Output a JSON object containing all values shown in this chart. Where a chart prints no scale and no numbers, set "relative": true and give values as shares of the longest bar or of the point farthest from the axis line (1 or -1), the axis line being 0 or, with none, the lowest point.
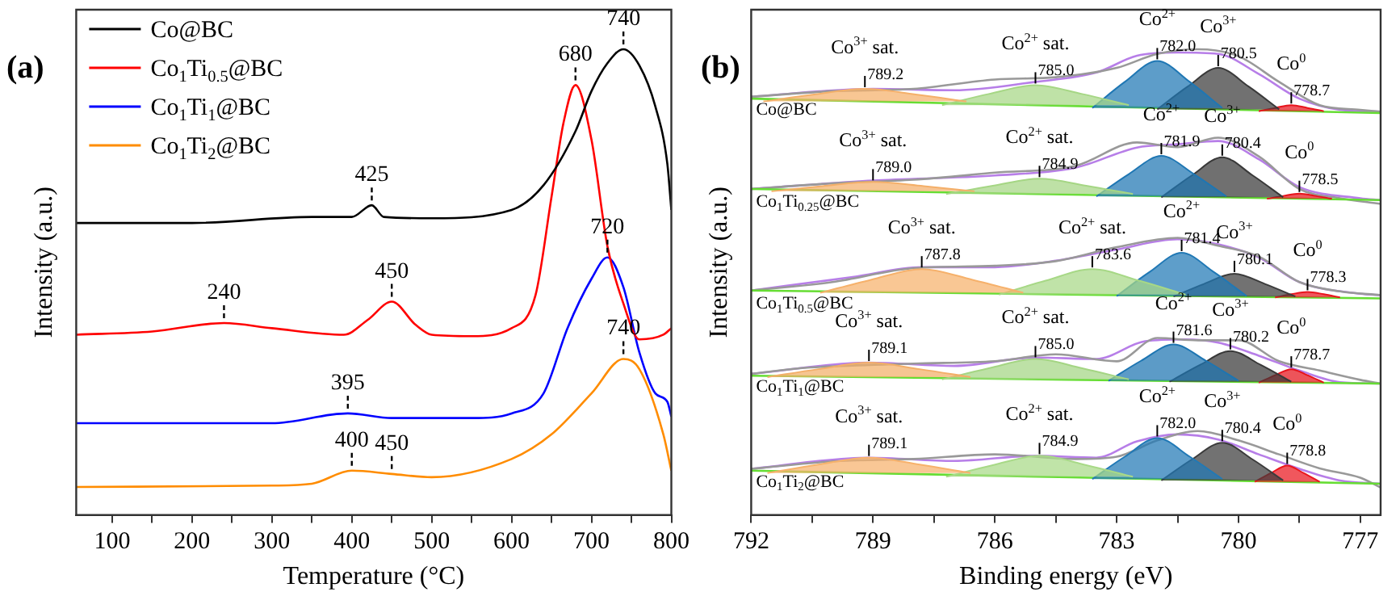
{
  "chart_data": [
    {
      "type": "line",
      "title": "(a)",
      "xlabel": "Temperature (°C)",
      "ylabel": "Intensity (a.u.)",
      "relative": true,
      "legend": "top left",
      "xlim": [
        55,
        800
      ],
      "xticks": [
        100,
        {
          "value": 150,
          "label": null
        },
        200,
        {
          "value": 250,
          "label": null
        },
        300,
        {
          "value": 350,
          "label": null
        },
        400,
        {
          "value": 450,
          "label": null
        },
        500,
        {
          "value": 550,
          "label": null
        },
        600,
        {
          "value": 650,
          "label": null
        },
        700,
        {
          "value": 750,
          "label": null
        },
        800
      ],
      "series": [
        {
          "name": "Co@BC",
          "color": "#000000",
          "x": [
            55,
            200,
            350,
            400,
            425,
            440,
            500,
            600,
            640,
            680,
            700,
            720,
            740,
            760,
            780,
            795,
            800
          ],
          "values": [
            0.627,
            0.627,
            0.64,
            0.64,
            0.665,
            0.64,
            0.637,
            0.655,
            0.708,
            0.824,
            0.91,
            0.97,
            1.0,
            0.965,
            0.877,
            0.754,
            0.655
          ]
        },
        {
          "name": "Co$_{1}$Ti$_{0.5}$@BC",
          "color": "#ff0000",
          "x": [
            55,
            150,
            240,
            300,
            390,
            420,
            450,
            480,
            500,
            550,
            600,
            630,
            650,
            665,
            680,
            700,
            720,
            740,
            760,
            790,
            800
          ],
          "values": [
            0.387,
            0.394,
            0.412,
            0.401,
            0.387,
            0.419,
            0.458,
            0.408,
            0.387,
            0.384,
            0.401,
            0.472,
            0.683,
            0.842,
            0.923,
            0.806,
            0.577,
            0.454,
            0.377,
            0.387,
            0.401
          ]
        },
        {
          "name": "Co$_{1}$Ti$_{1}$@BC",
          "color": "#0000ff",
          "x": [
            55,
            300,
            395,
            450,
            550,
            600,
            640,
            670,
            700,
            720,
            740,
            760,
            780,
            795,
            800
          ],
          "values": [
            0.197,
            0.197,
            0.218,
            0.208,
            0.208,
            0.218,
            0.261,
            0.401,
            0.507,
            0.553,
            0.489,
            0.349,
            0.261,
            0.243,
            0.211
          ]
        },
        {
          "name": "Co$_{1}$Ti$_{2}$@BC",
          "color": "#ff8c00",
          "x": [
            55,
            300,
            350,
            400,
            450,
            500,
            600,
            650,
            700,
            740,
            760,
            790,
            800
          ],
          "values": [
            0.06,
            0.063,
            0.067,
            0.095,
            0.088,
            0.081,
            0.12,
            0.173,
            0.261,
            0.335,
            0.313,
            0.173,
            0.095
          ]
        }
      ],
      "annotations": [
        {
          "text": "740",
          "x": 740,
          "y": 1.0
        },
        {
          "text": "680",
          "x": 680,
          "y": 0.923
        },
        {
          "text": "425",
          "x": 425,
          "y": 0.665
        },
        {
          "text": "720",
          "x": 720,
          "y": 0.553
        },
        {
          "text": "240",
          "x": 240,
          "y": 0.412
        },
        {
          "text": "450",
          "x": 450,
          "y": 0.458
        },
        {
          "text": "395",
          "x": 395,
          "y": 0.218
        },
        {
          "text": "740",
          "x": 740,
          "y": 0.335
        },
        {
          "text": "400",
          "x": 400,
          "y": 0.095
        },
        {
          "text": "450",
          "x": 450,
          "y": 0.088
        }
      ]
    },
    {
      "type": "area",
      "title": "(b)",
      "xlabel": "Binding energy (eV)",
      "ylabel": "Intensity (a.u.)",
      "relative": true,
      "xlim": [
        792,
        776.5
      ],
      "xticks": [
        792,
        {
          "value": 790.5,
          "label": null
        },
        789,
        {
          "value": 787.5,
          "label": null
        },
        786,
        {
          "value": 784.5,
          "label": null
        },
        783,
        {
          "value": 781.5,
          "label": null
        },
        780,
        {
          "value": 778.5,
          "label": null
        },
        777
      ],
      "series": [
        {
          "type": "area",
          "name": "Co$^{3+}$ sat.",
          "color": "#f5b06a",
          "x": [
            791.7,
            790.45,
            789.2,
            787.95,
            786.7
          ],
          "values": [
            0.888,
            0.903,
            0.915,
            0.903,
            0.888
          ]
        },
        {
          "type": "area",
          "name": "Co$^{2+}$ sat.",
          "color": "#a6d785",
          "x": [
            787.3,
            786.15,
            785,
            783.85,
            782.7
          ],
          "values": [
            0.88,
            0.904,
            0.923,
            0.904,
            0.88
          ]
        },
        {
          "type": "area",
          "name": "Co$^{2+}$",
          "color": "#1f77b4",
          "x": [
            783.6,
            782.8,
            782,
            781.2,
            780.4
          ],
          "values": [
            0.874,
            0.93,
            0.975,
            0.93,
            0.874
          ]
        },
        {
          "type": "area",
          "name": "Co$^{3+}$",
          "color": "#3a3a3a",
          "x": [
            782,
            781.25,
            780.5,
            779.75,
            779
          ],
          "values": [
            0.871,
            0.92,
            0.96,
            0.92,
            0.871
          ]
        },
        {
          "type": "area",
          "name": "Co$^{0}$",
          "color": "#e8141c",
          "x": [
            779.5,
            779.1,
            778.7,
            778.3,
            777.9
          ],
          "values": [
            0.867,
            0.874,
            0.88,
            0.874,
            0.867
          ]
        },
        {
          "type": "line",
          "color": "#66dd33",
          "x": [
            792,
            776.5
          ],
          "values": [
            0.894,
            0.863
          ]
        },
        {
          "type": "line",
          "color": "#999999",
          "x": [
            792,
            790,
            788,
            786,
            784.5,
            783,
            782,
            781,
            780,
            779,
            778,
            777,
            776.5
          ],
          "values": [
            0.898,
            0.91,
            0.915,
            0.935,
            0.94,
            0.96,
            0.99,
            1.0,
            0.985,
            0.93,
            0.88,
            0.87,
            0.866
          ]
        },
        {
          "type": "line",
          "name": "Co@BC",
          "color": "#b77ee8",
          "x": [
            792,
            789,
            787,
            785,
            783.5,
            782.5,
            781.5,
            780.5,
            779.5,
            778.5,
            777.5,
            776.5
          ],
          "values": [
            0.898,
            0.915,
            0.912,
            0.93,
            0.95,
            0.986,
            0.993,
            0.99,
            0.947,
            0.894,
            0.87,
            0.866
          ]
        },
        {
          "type": "area",
          "name": "Co$^{3+}$ sat.",
          "color": "#f4af69",
          "x": [
            791.5,
            790.25,
            789,
            787.75,
            786.5
          ],
          "values": [
            0.695,
            0.706,
            0.715,
            0.706,
            0.695
          ]
        },
        {
          "type": "area",
          "name": "Co$^{2+}$ sat.",
          "color": "#a5d684",
          "x": [
            787.2,
            786.05,
            784.9,
            783.75,
            782.6
          ],
          "values": [
            0.689,
            0.707,
            0.722,
            0.707,
            0.689
          ]
        },
        {
          "type": "area",
          "name": "Co$^{2+}$",
          "color": "#1e76b3",
          "x": [
            783.5,
            782.7,
            781.9,
            781.1,
            780.3
          ],
          "values": [
            0.684,
            0.732,
            0.771,
            0.732,
            0.684
          ]
        },
        {
          "type": "area",
          "name": "Co$^{3+}$",
          "color": "#393939",
          "x": [
            781.9,
            781.15,
            780.4,
            779.65,
            778.9
          ],
          "values": [
            0.682,
            0.729,
            0.768,
            0.729,
            0.682
          ]
        },
        {
          "type": "area",
          "name": "Co$^{0}$",
          "color": "#e7131b",
          "x": [
            779.3,
            778.9,
            778.5,
            778.1,
            777.7
          ],
          "values": [
            0.679,
            0.685,
            0.69,
            0.685,
            0.679
          ]
        },
        {
          "type": "line",
          "color": "#66dd33",
          "x": [
            792,
            776.5
          ],
          "values": [
            0.7,
            0.676
          ]
        },
        {
          "type": "line",
          "color": "#999999",
          "x": [
            792,
            790,
            788,
            786,
            784,
            782.5,
            781.5,
            780.5,
            779.5,
            778.5,
            777.5,
            776.5
          ],
          "values": [
            0.7,
            0.712,
            0.72,
            0.735,
            0.75,
            0.8,
            0.79,
            0.81,
            0.77,
            0.7,
            0.68,
            0.668
          ]
        },
        {
          "type": "line",
          "name": "Co$_{1}$Ti$_{0.25}$@BC",
          "color": "#b77ee8",
          "x": [
            792,
            789,
            786,
            784,
            782.5,
            781.5,
            780.5,
            779.5,
            778.5,
            777,
            776.5
          ],
          "values": [
            0.7,
            0.718,
            0.729,
            0.746,
            0.789,
            0.796,
            0.803,
            0.764,
            0.704,
            0.68,
            0.676
          ]
        },
        {
          "type": "area",
          "name": "Co$^{3+}$ sat.",
          "color": "#f6b16b",
          "x": [
            790.3,
            789.05,
            787.8,
            786.55,
            785.3
          ],
          "values": [
            0.477,
            0.505,
            0.528,
            0.505,
            0.477
          ]
        },
        {
          "type": "area",
          "name": "Co$^{2+}$ sat.",
          "color": "#a7d886",
          "x": [
            785.9,
            784.75,
            783.6,
            782.45,
            781.3
          ],
          "values": [
            0.473,
            0.503,
            0.528,
            0.503,
            0.473
          ]
        },
        {
          "type": "area",
          "name": "Co$^{2+}$",
          "color": "#2078b5",
          "x": [
            783,
            782.2,
            781.4,
            780.6,
            779.8
          ],
          "values": [
            0.47,
            0.521,
            0.563,
            0.521,
            0.47
          ]
        },
        {
          "type": "area",
          "name": "Co$^{3+}$",
          "color": "#3b3b3b",
          "x": [
            781.6,
            780.85,
            780.1,
            779.35,
            778.6
          ],
          "values": [
            0.469,
            0.496,
            0.518,
            0.496,
            0.469
          ]
        },
        {
          "type": "area",
          "name": "Co$^{0}$",
          "color": "#e9151d",
          "x": [
            779.1,
            778.7,
            778.3,
            777.9,
            777.5
          ],
          "values": [
            0.467,
            0.474,
            0.479,
            0.474,
            0.467
          ]
        },
        {
          "type": "line",
          "color": "#66dd33",
          "x": [
            792,
            776.5
          ],
          "values": [
            0.482,
            0.465
          ]
        },
        {
          "type": "line",
          "color": "#999999",
          "x": [
            792,
            790,
            788,
            786,
            784.5,
            783,
            781.5,
            780.5,
            779.5,
            778.5,
            777.5,
            776.5
          ],
          "values": [
            0.482,
            0.5,
            0.53,
            0.535,
            0.545,
            0.575,
            0.595,
            0.578,
            0.555,
            0.5,
            0.48,
            0.472
          ]
        },
        {
          "type": "line",
          "name": "Co$_{1}$Ti$_{0.5}$@BC",
          "color": "#b77ee8",
          "x": [
            792,
            789.5,
            787.8,
            786,
            784.5,
            783,
            781.5,
            780.5,
            779.5,
            778.5,
            777,
            776.5
          ],
          "values": [
            0.482,
            0.511,
            0.532,
            0.532,
            0.546,
            0.57,
            0.592,
            0.581,
            0.553,
            0.5,
            0.475,
            0.472
          ]
        },
        {
          "type": "area",
          "name": "Co$^{3+}$ sat.",
          "color": "#f3ae68",
          "x": [
            791.6,
            790.35,
            789.1,
            787.85,
            786.6
          ],
          "values": [
            0.296,
            0.313,
            0.327,
            0.313,
            0.296
          ]
        },
        {
          "type": "area",
          "name": "Co$^{2+}$ sat.",
          "color": "#a4d583",
          "x": [
            787.3,
            786.15,
            785,
            783.85,
            782.7
          ],
          "values": [
            0.291,
            0.315,
            0.335,
            0.315,
            0.291
          ]
        },
        {
          "type": "area",
          "name": "Co$^{2+}$",
          "color": "#1d75b2",
          "x": [
            783.2,
            782.4,
            781.6,
            780.8,
            780
          ],
          "values": [
            0.288,
            0.331,
            0.366,
            0.331,
            0.288
          ]
        },
        {
          "type": "area",
          "name": "Co$^{3+}$",
          "color": "#383838",
          "x": [
            781.7,
            780.95,
            780.2,
            779.45,
            778.7
          ],
          "values": [
            0.286,
            0.322,
            0.352,
            0.322,
            0.286
          ]
        },
        {
          "type": "area",
          "name": "Co$^{0}$",
          "color": "#e6121a",
          "x": [
            779.5,
            779.1,
            778.7,
            778.3,
            777.9
          ],
          "values": [
            0.284,
            0.3,
            0.313,
            0.3,
            0.284
          ]
        },
        {
          "type": "line",
          "color": "#66dd33",
          "x": [
            792,
            776.5
          ],
          "values": [
            0.299,
            0.282
          ]
        },
        {
          "type": "line",
          "color": "#999999",
          "x": [
            792,
            790.8,
            788,
            786,
            784.5,
            783,
            782,
            781,
            780,
            779,
            778,
            777,
            776.5
          ],
          "values": [
            0.303,
            0.315,
            0.325,
            0.33,
            0.345,
            0.33,
            0.38,
            0.375,
            0.375,
            0.33,
            0.31,
            0.29,
            0.282
          ]
        },
        {
          "type": "line",
          "name": "Co$_{1}$Ti$_{1}$@BC",
          "color": "#b77ee8",
          "x": [
            792,
            789.1,
            787,
            785,
            783.5,
            782.3,
            781.3,
            780.5,
            779.5,
            778.5,
            777.5,
            776.5
          ],
          "values": [
            0.303,
            0.327,
            0.32,
            0.338,
            0.335,
            0.373,
            0.377,
            0.37,
            0.342,
            0.31,
            0.285,
            0.282
          ]
        },
        {
          "type": "area",
          "name": "Co$^{3+}$ sat.",
          "color": "#f7b26c",
          "x": [
            791.6,
            790.35,
            789.1,
            787.85,
            786.6
          ],
          "values": [
            0.09,
            0.108,
            0.123,
            0.108,
            0.09
          ]
        },
        {
          "type": "area",
          "name": "Co$^{2+}$ sat.",
          "color": "#a8d987",
          "x": [
            787.2,
            786.05,
            784.9,
            783.75,
            782.6
          ],
          "values": [
            0.082,
            0.107,
            0.127,
            0.107,
            0.082
          ]
        },
        {
          "type": "area",
          "name": "Co$^{2+}$",
          "color": "#2179b6",
          "x": [
            783.6,
            782.8,
            782,
            781.2,
            780.4
          ],
          "values": [
            0.077,
            0.125,
            0.165,
            0.125,
            0.077
          ]
        },
        {
          "type": "area",
          "name": "Co$^{3+}$",
          "color": "#3c3c3c",
          "x": [
            781.9,
            781.15,
            780.4,
            779.65,
            778.9
          ],
          "values": [
            0.074,
            0.119,
            0.155,
            0.119,
            0.074
          ]
        },
        {
          "type": "area",
          "name": "Co$^{0}$",
          "color": "#ea161e",
          "x": [
            779.6,
            779.2,
            778.8,
            778.4,
            778
          ],
          "values": [
            0.071,
            0.09,
            0.106,
            0.09,
            0.071
          ]
        },
        {
          "type": "line",
          "color": "#66dd33",
          "x": [
            792,
            776.5
          ],
          "values": [
            0.095,
            0.067
          ]
        },
        {
          "type": "line",
          "color": "#999999",
          "x": [
            792,
            790,
            788,
            786,
            784,
            783,
            782,
            781,
            780,
            779,
            778,
            777,
            776.5
          ],
          "values": [
            0.099,
            0.115,
            0.12,
            0.13,
            0.12,
            0.125,
            0.16,
            0.18,
            0.16,
            0.13,
            0.1,
            0.08,
            0.059
          ]
        },
        {
          "type": "line",
          "name": "Co$_{1}$Ti$_{2}$@BC",
          "color": "#b77ee8",
          "x": [
            792,
            789.1,
            787,
            785,
            783.5,
            782.5,
            781.5,
            780.5,
            779.5,
            778.5,
            777.5,
            776.5
          ],
          "values": [
            0.099,
            0.123,
            0.116,
            0.127,
            0.123,
            0.158,
            0.173,
            0.162,
            0.13,
            0.099,
            0.074,
            0.067
          ]
        }
      ],
      "annotations": [
        {
          "text": "789.2",
          "x": 789.2,
          "y": 0.915
        },
        {
          "text": "785.0",
          "x": 785,
          "y": 0.923
        },
        {
          "text": "782.0",
          "x": 782,
          "y": 0.975
        },
        {
          "text": "780.5",
          "x": 780.5,
          "y": 0.96
        },
        {
          "text": "778.7",
          "x": 778.7,
          "y": 0.88
        },
        {
          "text": "789.0",
          "x": 789,
          "y": 0.715
        },
        {
          "text": "784.9",
          "x": 784.9,
          "y": 0.722
        },
        {
          "text": "781.9",
          "x": 781.9,
          "y": 0.771
        },
        {
          "text": "780.4",
          "x": 780.4,
          "y": 0.768
        },
        {
          "text": "778.5",
          "x": 778.5,
          "y": 0.69
        },
        {
          "text": "787.8",
          "x": 787.8,
          "y": 0.528
        },
        {
          "text": "783.6",
          "x": 783.6,
          "y": 0.528
        },
        {
          "text": "781.4",
          "x": 781.4,
          "y": 0.563
        },
        {
          "text": "780.1",
          "x": 780.1,
          "y": 0.518
        },
        {
          "text": "778.3",
          "x": 778.3,
          "y": 0.479
        },
        {
          "text": "789.1",
          "x": 789.1,
          "y": 0.327
        },
        {
          "text": "785.0",
          "x": 785,
          "y": 0.335
        },
        {
          "text": "781.6",
          "x": 781.6,
          "y": 0.366
        },
        {
          "text": "780.2",
          "x": 780.2,
          "y": 0.352
        },
        {
          "text": "778.7",
          "x": 778.7,
          "y": 0.313
        },
        {
          "text": "789.1",
          "x": 789.1,
          "y": 0.123
        },
        {
          "text": "784.9",
          "x": 784.9,
          "y": 0.127
        },
        {
          "text": "782.0",
          "x": 782,
          "y": 0.165
        },
        {
          "text": "780.4",
          "x": 780.4,
          "y": 0.155
        },
        {
          "text": "778.8",
          "x": 778.8,
          "y": 0.106
        }
      ]
    }
  ]
}
